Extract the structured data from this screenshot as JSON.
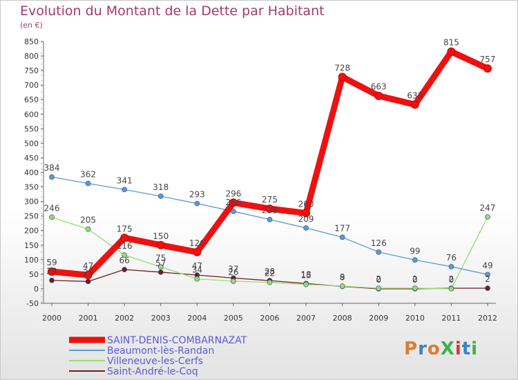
{
  "header": {
    "title": "Evolution du Montant de la Dette par Habitant",
    "unit": "(en €)"
  },
  "logo": {
    "text": "ProXiti",
    "colors": [
      "#e07a2a",
      "#3b82c4",
      "#e07a2a",
      "#3bb34a",
      "#d43a3a",
      "#3b82c4",
      "#3bb34a"
    ]
  },
  "chart_data": {
    "type": "line",
    "x": [
      "2000",
      "2001",
      "2002",
      "2003",
      "2004",
      "2005",
      "2006",
      "2007",
      "2008",
      "2009",
      "2010",
      "2011",
      "2012"
    ],
    "ylim": [
      -50,
      850
    ],
    "yticks": [
      -50,
      0,
      50,
      100,
      150,
      200,
      250,
      300,
      350,
      400,
      450,
      500,
      550,
      600,
      650,
      700,
      750,
      800,
      850
    ],
    "grid": false,
    "legend_position": "bottom-left",
    "series": [
      {
        "name": "SAINT-DENIS-COMBARNAZAT",
        "color": "#ee1111",
        "values": [
          59,
          47,
          175,
          150,
          126,
          296,
          275,
          260,
          728,
          663,
          633,
          815,
          757
        ]
      },
      {
        "name": "Beaumont-lès-Randan",
        "color": "#5b9bd5",
        "values": [
          384,
          362,
          341,
          318,
          293,
          266,
          238,
          209,
          177,
          126,
          99,
          76,
          49
        ]
      },
      {
        "name": "Villeneuve-les-Cerfs",
        "color": "#96dc6e",
        "values": [
          246,
          205,
          116,
          75,
          34,
          26,
          22,
          15,
          9,
          2,
          2,
          0,
          247
        ]
      },
      {
        "name": "Saint-André-le-Coq",
        "color": "#6e1e1e",
        "values": [
          29,
          25,
          66,
          57,
          47,
          37,
          28,
          18,
          8,
          0,
          0,
          2,
          2
        ]
      }
    ]
  }
}
